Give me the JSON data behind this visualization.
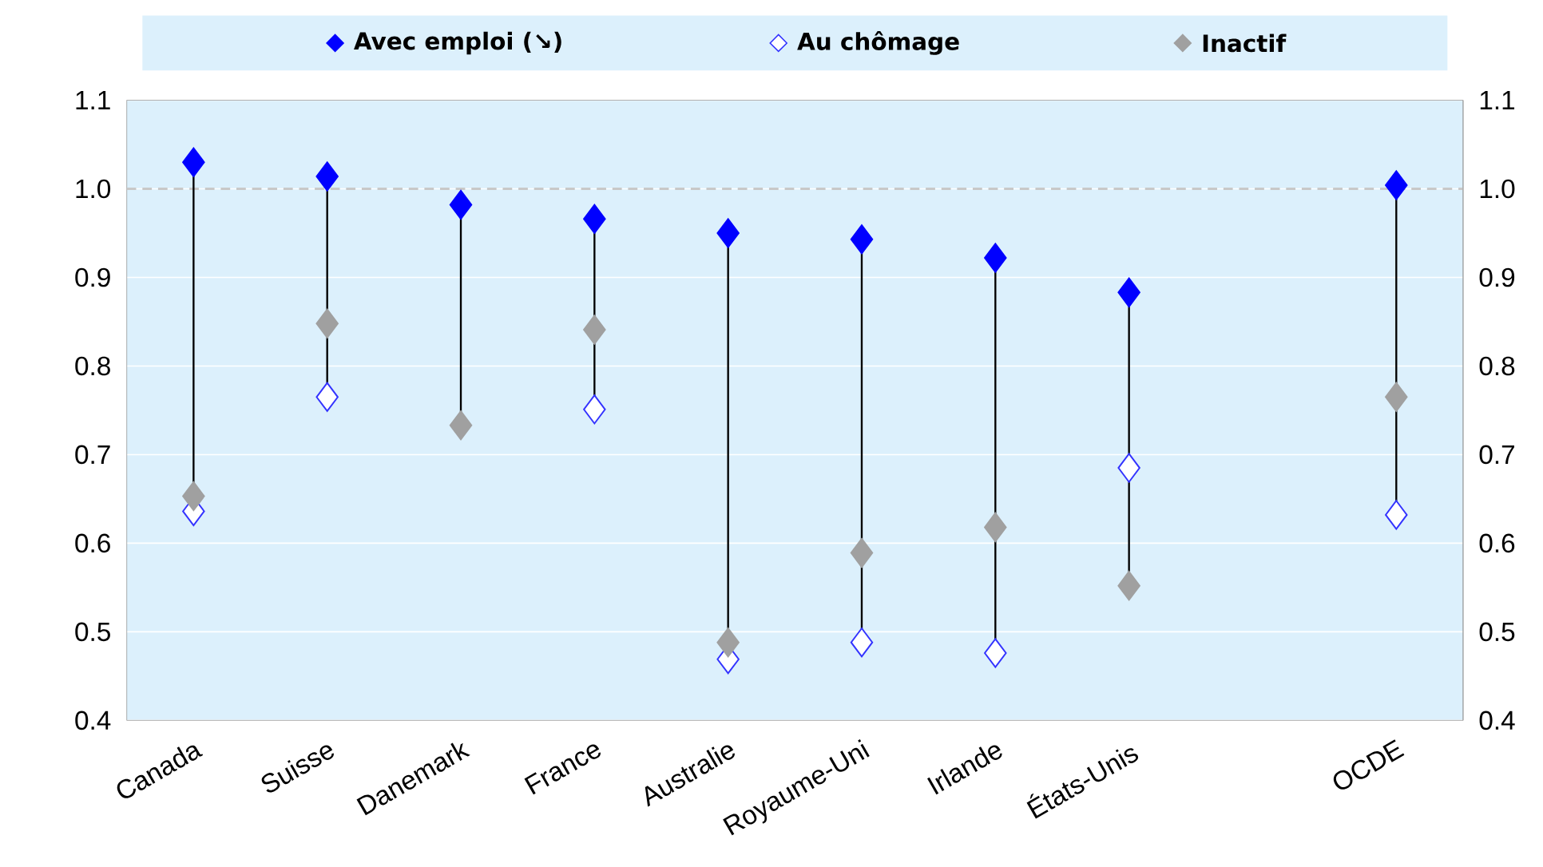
{
  "chart_data": {
    "type": "scatter",
    "categories": [
      "Canada",
      "Suisse",
      "Danemark",
      "France",
      "Australie",
      "Royaume-Uni",
      "Irlande",
      "États-Unis",
      null,
      "OCDE"
    ],
    "series": [
      {
        "name": "Avec emploi (↘)",
        "color": "#0000ff",
        "values": [
          1.03,
          1.014,
          0.982,
          0.966,
          0.95,
          0.943,
          0.922,
          0.883,
          null,
          1.004
        ]
      },
      {
        "name": "Au chômage",
        "color": "#3333ff",
        "values": [
          0.636,
          0.765,
          null,
          0.751,
          0.469,
          0.488,
          0.476,
          0.685,
          null,
          0.632
        ]
      },
      {
        "name": "Inactif",
        "color": "#a0a0a0",
        "values": [
          0.653,
          0.848,
          0.733,
          0.841,
          0.488,
          0.589,
          0.618,
          0.552,
          null,
          0.765
        ]
      }
    ],
    "ylim": [
      0.4,
      1.1
    ],
    "yticks": [
      0.4,
      0.5,
      0.6,
      0.7,
      0.8,
      0.9,
      {
        "value": 1.0,
        "label": "1.0"
      },
      1.1
    ],
    "y2lim": [
      0.4,
      1.1
    ],
    "y2ticks": [
      0.4,
      0.5,
      0.6,
      0.7,
      0.8,
      0.9,
      {
        "value": 1.0,
        "label": "1.0"
      },
      1.1
    ],
    "ref_lines": [
      {
        "axis": "y",
        "value": 1.0,
        "color": "#c8c8c8",
        "line_style": "dashed"
      }
    ],
    "grid": "y",
    "legend": "top",
    "marker": "diamond"
  }
}
